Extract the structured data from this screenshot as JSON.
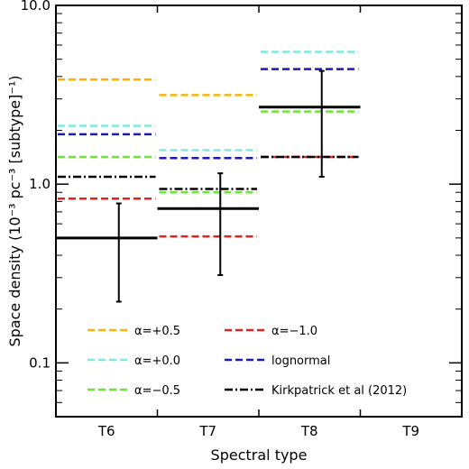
{
  "chart_data": {
    "type": "line",
    "xlabel": "Spectral type",
    "ylabel": "Space density (10⁻³ pc⁻³ [subtype]⁻¹)",
    "yscale": "log",
    "ylim": [
      0.05,
      10.0
    ],
    "xlim": [
      0,
      4
    ],
    "y_ticks": [
      {
        "value": 0.1,
        "label": "0.1"
      },
      {
        "value": 1.0,
        "label": "1.0"
      },
      {
        "value": 10.0,
        "label": "10.0"
      }
    ],
    "categories": [
      {
        "label": "T6",
        "x": 0.5
      },
      {
        "label": "T7",
        "x": 1.5
      },
      {
        "label": "T8",
        "x": 2.5
      },
      {
        "label": "T9",
        "x": 3.5
      }
    ],
    "legend_position": "bottom",
    "series": [
      {
        "name": "α=+0.5",
        "color": "#ffb300",
        "style": "dashed",
        "segments": [
          {
            "x0": 0,
            "x1": 1,
            "y": 3.85
          },
          {
            "x0": 1,
            "x1": 2,
            "y": 3.15
          }
        ]
      },
      {
        "name": "α=+0.0",
        "color": "#7fe8e0",
        "style": "dashed",
        "segments": [
          {
            "x0": 0,
            "x1": 1,
            "y": 2.12
          },
          {
            "x0": 1,
            "x1": 2,
            "y": 1.55
          },
          {
            "x0": 2,
            "x1": 3,
            "y": 5.5
          }
        ]
      },
      {
        "name": "α=−0.5",
        "color": "#6ee33a",
        "style": "dashed",
        "segments": [
          {
            "x0": 0,
            "x1": 1,
            "y": 1.42
          },
          {
            "x0": 1,
            "x1": 2,
            "y": 0.9
          },
          {
            "x0": 2,
            "x1": 3,
            "y": 2.55
          }
        ]
      },
      {
        "name": "α=−1.0",
        "color": "#e82020",
        "style": "dashed",
        "segments": [
          {
            "x0": 0,
            "x1": 1,
            "y": 0.83
          },
          {
            "x0": 1,
            "x1": 2,
            "y": 0.51
          },
          {
            "x0": 2,
            "x1": 3,
            "y": 1.42
          }
        ]
      },
      {
        "name": "lognormal",
        "color": "#1a1ab0",
        "style": "dashed",
        "segments": [
          {
            "x0": 0,
            "x1": 1,
            "y": 1.9
          },
          {
            "x0": 1,
            "x1": 2,
            "y": 1.4
          },
          {
            "x0": 2,
            "x1": 3,
            "y": 4.4
          }
        ]
      },
      {
        "name": "Kirkpatrick et al (2012)",
        "color": "#000000",
        "style": "dashdot",
        "segments": [
          {
            "x0": 0,
            "x1": 1,
            "y": 1.1
          },
          {
            "x0": 1,
            "x1": 2,
            "y": 0.94
          },
          {
            "x0": 2,
            "x1": 3,
            "y": 1.42
          }
        ]
      }
    ],
    "measurements": [
      {
        "x0": 0,
        "x1": 1,
        "x": 0.62,
        "y": 0.5,
        "ylow": 0.22,
        "yhigh": 0.78
      },
      {
        "x0": 1,
        "x1": 2,
        "x": 1.62,
        "y": 0.73,
        "ylow": 0.31,
        "yhigh": 1.15
      },
      {
        "x0": 2,
        "x1": 3,
        "x": 2.62,
        "y": 2.7,
        "ylow": 1.1,
        "yhigh": 4.3
      }
    ],
    "legend_columns": [
      [
        "α=+0.5",
        "α=+0.0",
        "α=−0.5"
      ],
      [
        "α=−1.0",
        "lognormal",
        "Kirkpatrick et al (2012)"
      ]
    ]
  }
}
